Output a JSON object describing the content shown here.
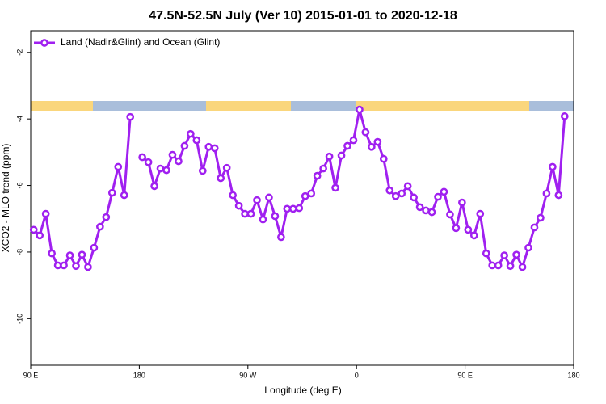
{
  "chart_data": {
    "type": "line",
    "title": "47.5N-52.5N July (Ver 10)   2015-01-01 to 2020-12-18",
    "xlabel": "Longitude (deg E)",
    "ylabel": "XCO2 - MLO trend (ppm)",
    "xlim": [
      90,
      540
    ],
    "ylim": [
      -11.4,
      -1.35
    ],
    "xticks": [
      {
        "value": 90,
        "label": "90 E"
      },
      {
        "value": 180,
        "label": "180"
      },
      {
        "value": 270,
        "label": "90 W"
      },
      {
        "value": 360,
        "label": "0"
      },
      {
        "value": 450,
        "label": "90 E"
      },
      {
        "value": 540,
        "label": "180"
      }
    ],
    "yticks": [
      -2,
      -4,
      -6,
      -8,
      -10
    ],
    "legend": "upper left",
    "grid": false,
    "x": [
      92.5,
      97.5,
      102.5,
      107.5,
      112.5,
      117.5,
      122.5,
      127.5,
      132.5,
      137.5,
      142.5,
      147.5,
      152.5,
      157.5,
      162.5,
      167.5,
      172.5,
      177.5,
      182.5,
      187.5,
      192.5,
      197.5,
      202.5,
      207.5,
      212.5,
      217.5,
      222.5,
      227.5,
      232.5,
      237.5,
      242.5,
      247.5,
      252.5,
      257.5,
      262.5,
      267.5,
      272.5,
      277.5,
      282.5,
      287.5,
      292.5,
      297.5,
      302.5,
      307.5,
      312.5,
      317.5,
      322.5,
      327.5,
      332.5,
      337.5,
      342.5,
      347.5,
      352.5,
      357.5,
      362.5,
      367.5,
      372.5,
      377.5,
      382.5,
      387.5,
      392.5,
      397.5,
      402.5,
      407.5,
      412.5,
      417.5,
      422.5,
      427.5,
      432.5,
      437.5,
      442.5,
      447.5,
      452.5,
      457.5,
      462.5,
      467.5,
      472.5,
      477.5,
      482.5,
      487.5,
      492.5,
      497.5,
      502.5,
      507.5,
      512.5,
      517.5,
      522.5,
      527.5,
      532.5
    ],
    "series": [
      {
        "name": "Land (Nadir&Glint) and Ocean (Glint)",
        "color": "#a020f0",
        "values": [
          -7.33,
          -7.5,
          -6.85,
          -8.04,
          -8.4,
          -8.4,
          -8.1,
          -8.42,
          -8.08,
          -8.45,
          -7.87,
          -7.24,
          -6.95,
          -6.22,
          -5.44,
          -6.29,
          -3.94,
          null,
          -5.15,
          -5.3,
          -6.02,
          -5.49,
          -5.54,
          -5.08,
          -5.27,
          -4.81,
          -4.45,
          -4.64,
          -5.56,
          -4.84,
          -4.88,
          -5.78,
          -5.47,
          -6.29,
          -6.61,
          -6.85,
          -6.85,
          -6.44,
          -7.02,
          -6.36,
          -6.92,
          -7.55,
          -6.7,
          -6.7,
          -6.68,
          -6.32,
          -6.24,
          -5.71,
          -5.49,
          -5.13,
          -6.07,
          -5.1,
          -4.81,
          -4.64,
          -3.72,
          -4.4,
          -4.84,
          -4.69,
          -5.2,
          -6.15,
          -6.32,
          -6.24,
          -6.02,
          -6.36,
          -6.65,
          -6.75,
          -6.8,
          -6.34,
          -6.19,
          -6.87,
          -7.28,
          -6.51,
          -7.33,
          -7.5,
          -6.85,
          -8.04,
          -8.4,
          -8.4,
          -8.1,
          -8.42,
          -8.08,
          -8.45,
          -7.87,
          -7.26,
          -6.97,
          -6.24,
          -5.44,
          -6.29,
          -3.92
        ]
      }
    ]
  }
}
